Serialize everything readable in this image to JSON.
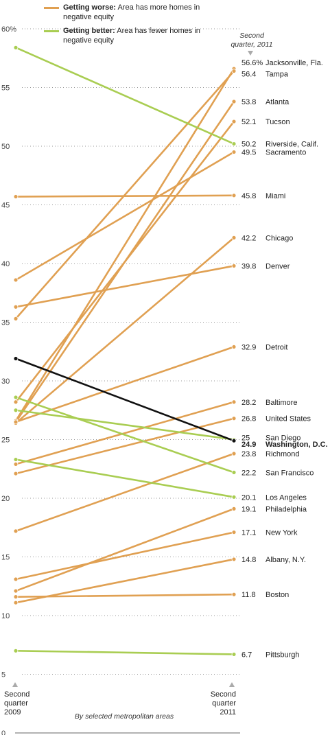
{
  "legend": {
    "worse_bold": "Getting worse:",
    "worse_text": " Area has more homes in negative equity",
    "better_bold": "Getting better:",
    "better_text": " Area has fewer homes in negative equity"
  },
  "labels": {
    "end_period": "Second quarter, 2011",
    "start_axis": "Second quarter 2009",
    "end_axis": "Second quarter 2011",
    "footnote": "By selected metropolitan areas"
  },
  "colors": {
    "worse": "#e0a052",
    "better": "#a9cd52",
    "highlight": "#111111",
    "grid": "#999999"
  },
  "chart_data": {
    "type": "line",
    "x": [
      "Second quarter 2009",
      "Second quarter 2011"
    ],
    "ylim": [
      0,
      60
    ],
    "yticks": [
      0,
      5,
      10,
      15,
      20,
      25,
      30,
      35,
      40,
      45,
      50,
      55
    ],
    "ytick_labels": [
      "0",
      "5",
      "10",
      "15",
      "20",
      "25",
      "30",
      "35",
      "40",
      "45",
      "50",
      "55"
    ],
    "ymax_label": "60%",
    "series": [
      {
        "name": "Jacksonville, Fla.",
        "values": [
          26.6,
          56.6
        ],
        "end_label": "56.6%",
        "trend": "worse"
      },
      {
        "name": "Tampa",
        "values": [
          35.3,
          56.4
        ],
        "end_label": "56.4",
        "trend": "worse"
      },
      {
        "name": "Atlanta",
        "values": [
          26.5,
          53.8
        ],
        "end_label": "53.8",
        "trend": "worse"
      },
      {
        "name": "Tucson",
        "values": [
          28.2,
          52.1
        ],
        "end_label": "52.1",
        "trend": "worse"
      },
      {
        "name": "Riverside, Calif.",
        "values": [
          58.4,
          50.2
        ],
        "end_label": "50.2",
        "trend": "better"
      },
      {
        "name": "Sacramento",
        "values": [
          38.6,
          49.5
        ],
        "end_label": "49.5",
        "trend": "worse"
      },
      {
        "name": "Miami",
        "values": [
          45.7,
          45.8
        ],
        "end_label": "45.8",
        "trend": "worse"
      },
      {
        "name": "Chicago",
        "values": [
          26.4,
          42.2
        ],
        "end_label": "42.2",
        "trend": "worse"
      },
      {
        "name": "Denver",
        "values": [
          36.3,
          39.8
        ],
        "end_label": "39.8",
        "trend": "worse"
      },
      {
        "name": "Detroit",
        "values": [
          26.5,
          32.9
        ],
        "end_label": "32.9",
        "trend": "worse"
      },
      {
        "name": "Baltimore",
        "values": [
          22.9,
          28.2
        ],
        "end_label": "28.2",
        "trend": "worse"
      },
      {
        "name": "United States",
        "values": [
          22.1,
          26.8
        ],
        "end_label": "26.8",
        "trend": "worse"
      },
      {
        "name": "San Diego",
        "values": [
          27.5,
          25.0
        ],
        "end_label": "25",
        "trend": "better"
      },
      {
        "name": "Washington, D.C.",
        "values": [
          31.9,
          24.9
        ],
        "end_label": "24.9",
        "trend": "highlight"
      },
      {
        "name": "Richmond",
        "values": [
          17.2,
          23.8
        ],
        "end_label": "23.8",
        "trend": "worse"
      },
      {
        "name": "San Francisco",
        "values": [
          28.6,
          22.2
        ],
        "end_label": "22.2",
        "trend": "better"
      },
      {
        "name": "Los Angeles",
        "values": [
          23.3,
          20.1
        ],
        "end_label": "20.1",
        "trend": "better"
      },
      {
        "name": "Philadelphia",
        "values": [
          12.1,
          19.1
        ],
        "end_label": "19.1",
        "trend": "worse"
      },
      {
        "name": "New York",
        "values": [
          13.1,
          17.1
        ],
        "end_label": "17.1",
        "trend": "worse"
      },
      {
        "name": "Albany, N.Y.",
        "values": [
          11.1,
          14.8
        ],
        "end_label": "14.8",
        "trend": "worse"
      },
      {
        "name": "Boston",
        "values": [
          11.6,
          11.8
        ],
        "end_label": "11.8",
        "trend": "worse"
      },
      {
        "name": "Pittsburgh",
        "values": [
          7.0,
          6.7
        ],
        "end_label": "6.7",
        "trend": "better"
      }
    ]
  }
}
